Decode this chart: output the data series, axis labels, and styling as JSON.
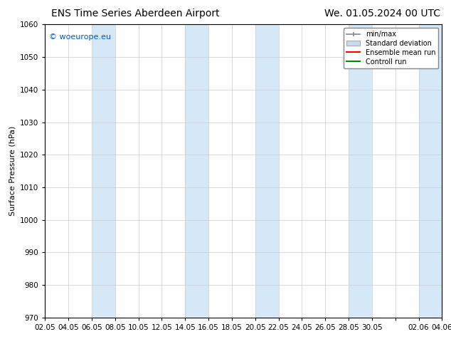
{
  "title_left": "ENS Time Series Aberdeen Airport",
  "title_right": "We. 01.05.2024 00 UTC",
  "ylabel": "Surface Pressure (hPa)",
  "ylim": [
    970,
    1060
  ],
  "yticks": [
    970,
    980,
    990,
    1000,
    1010,
    1020,
    1030,
    1040,
    1050,
    1060
  ],
  "x_labels": [
    "02.05",
    "04.05",
    "06.05",
    "08.05",
    "10.05",
    "12.05",
    "14.05",
    "16.05",
    "18.05",
    "20.05",
    "22.05",
    "24.05",
    "26.05",
    "28.05",
    "30.05",
    "",
    "02.06",
    "04.06"
  ],
  "x_positions": [
    0,
    2,
    4,
    6,
    8,
    10,
    12,
    14,
    16,
    18,
    20,
    22,
    24,
    26,
    28,
    30,
    32,
    34
  ],
  "watermark": "© woeurope.eu",
  "legend_labels": [
    "min/max",
    "Standard deviation",
    "Ensemble mean run",
    "Controll run"
  ],
  "legend_colors": [
    "#aaaaaa",
    "#c8dced",
    "#ff0000",
    "#008800"
  ],
  "bg_color": "#ffffff",
  "plot_bg_color": "#ffffff",
  "band_color": "#d4e8f7",
  "grid_color": "#cccccc",
  "title_fontsize": 10,
  "label_fontsize": 8,
  "tick_fontsize": 7.5
}
